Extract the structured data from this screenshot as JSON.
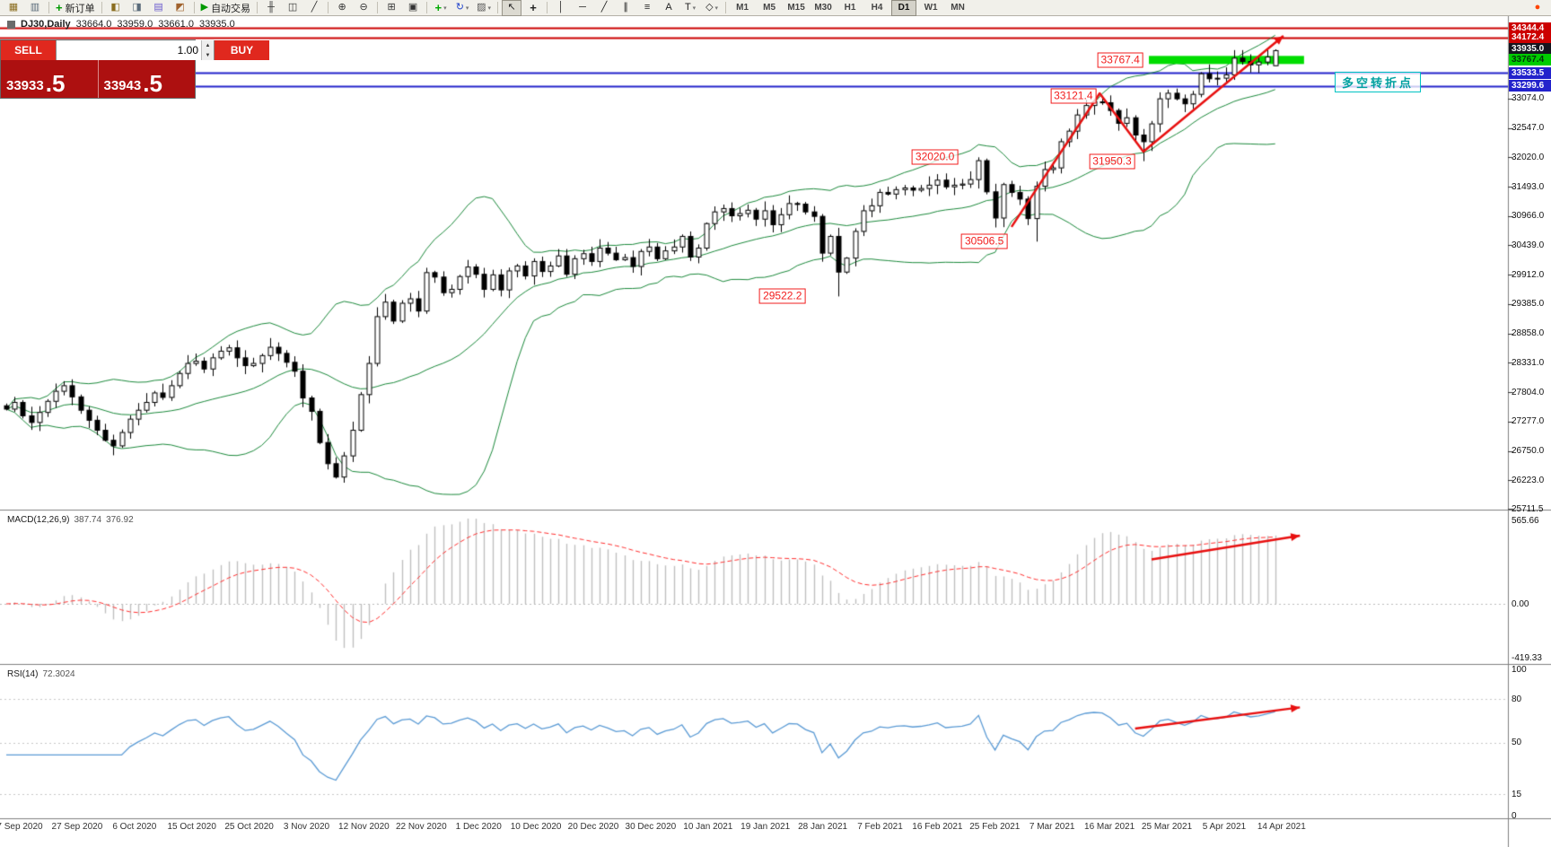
{
  "toolbar": {
    "timeframes": [
      "M1",
      "M5",
      "M15",
      "M30",
      "H1",
      "H4",
      "D1",
      "W1",
      "MN"
    ],
    "selected_timeframe": "D1",
    "groups": [
      {
        "items": [
          {
            "name": "new-chart",
            "glyph": "▦",
            "color": "#8a6d1f"
          },
          {
            "name": "profiles",
            "glyph": "▥",
            "color": "#5a6b7a"
          }
        ]
      },
      {
        "items": [
          {
            "name": "new-order",
            "glyph": "+",
            "color": "#009900",
            "label": "新订单"
          }
        ]
      },
      {
        "items": [
          {
            "name": "market-watch",
            "glyph": "◧",
            "color": "#8a6d1f"
          },
          {
            "name": "data-window",
            "glyph": "◨",
            "color": "#5a6b7a"
          },
          {
            "name": "navigator",
            "glyph": "▤",
            "color": "#6a5acd"
          },
          {
            "name": "metaeditor",
            "glyph": "◩",
            "color": "#a0622d"
          }
        ]
      },
      {
        "items": [
          {
            "name": "auto-trading",
            "glyph": "▶",
            "color": "#009900",
            "label": "自动交易"
          }
        ]
      },
      {
        "items": [
          {
            "name": "bar-chart-type",
            "glyph": "╫",
            "color": "#333333"
          },
          {
            "name": "candlestick-type",
            "glyph": "◫",
            "color": "#333333"
          },
          {
            "name": "line-chart-type",
            "glyph": "╱",
            "color": "#333333"
          }
        ]
      },
      {
        "items": [
          {
            "name": "zoom-in",
            "glyph": "⊕",
            "color": "#333333"
          },
          {
            "name": "zoom-out",
            "glyph": "⊖",
            "color": "#333333"
          }
        ]
      },
      {
        "items": [
          {
            "name": "tile-windows",
            "glyph": "⊞",
            "color": "#333333"
          },
          {
            "name": "arrange-windows",
            "glyph": "▣",
            "color": "#333333"
          }
        ]
      },
      {
        "items": [
          {
            "name": "indicators",
            "glyph": "+",
            "color": "#00aa00",
            "dropdown": true
          },
          {
            "name": "periods",
            "glyph": "↻",
            "color": "#2244cc",
            "dropdown": true
          },
          {
            "name": "templates",
            "glyph": "▨",
            "color": "#555555",
            "dropdown": true
          }
        ]
      },
      {
        "items": [
          {
            "name": "cursor",
            "glyph": "↖",
            "color": "#222222",
            "selected": true
          },
          {
            "name": "crosshair",
            "glyph": "+",
            "color": "#222222"
          }
        ]
      },
      {
        "items": [
          {
            "name": "vertical-line",
            "glyph": "│",
            "color": "#222222"
          },
          {
            "name": "horizontal-line",
            "glyph": "─",
            "color": "#222222"
          },
          {
            "name": "trendline",
            "glyph": "╱",
            "color": "#222222"
          },
          {
            "name": "equidistant-channel",
            "glyph": "∥",
            "color": "#222222"
          },
          {
            "name": "fibonacci",
            "glyph": "≡",
            "color": "#222222"
          },
          {
            "name": "text-tool",
            "glyph": "A",
            "color": "#222222"
          },
          {
            "name": "arrows-tool",
            "glyph": "T",
            "color": "#222222",
            "dropdown": true
          },
          {
            "name": "shapes-tool",
            "glyph": "◇",
            "color": "#222222",
            "dropdown": true
          }
        ]
      },
      {
        "type": "timeframes"
      },
      {
        "type": "spacer"
      },
      {
        "items": [
          {
            "name": "record",
            "glyph": "●",
            "color": "#ff4400"
          }
        ]
      }
    ]
  },
  "chart_header": {
    "symbol_period": "DJ30,Daily",
    "open": "33664.0",
    "high": "33959.0",
    "low": "33661.0",
    "close": "33935.0"
  },
  "trade_panel": {
    "sell_label": "SELL",
    "buy_label": "BUY",
    "volume": "1.00",
    "bid_main": "33933",
    "bid_frac": ".5",
    "ask_main": "33943",
    "ask_frac": ".5"
  },
  "price_axis": {
    "special": [
      {
        "text": "34344.4",
        "at": 34344.4,
        "bg": "#cc0000",
        "fg": "#ffffff"
      },
      {
        "text": "34172.4",
        "at": 34172.4,
        "bg": "#cc0000",
        "fg": "#ffffff"
      },
      {
        "text": "33935.0",
        "at": 33958.0,
        "bg": "#15151f",
        "fg": "#ffffff"
      },
      {
        "text": "33767.4",
        "at": 33767.4,
        "bg": "#00cc00",
        "fg": "#00330a"
      },
      {
        "text": "33533.5",
        "at": 33533.5,
        "bg": "#2323cc",
        "fg": "#ffffff"
      },
      {
        "text": "33299.6",
        "at": 33299.6,
        "bg": "#2323cc",
        "fg": "#ffffff"
      }
    ],
    "ticks": [
      "33074.0",
      "32547.0",
      "32020.0",
      "31493.0",
      "30966.0",
      "30439.0",
      "29912.0",
      "29385.0",
      "28858.0",
      "28331.0",
      "27804.0",
      "27277.0",
      "26750.0",
      "26223.0",
      "25711.5"
    ]
  },
  "macd_panel": {
    "label": "MACD(12,26,9)",
    "value1": "387.74",
    "value2": "376.92",
    "axis": [
      "565.66",
      "0.00",
      "-419.33"
    ]
  },
  "rsi_panel": {
    "label": "RSI(14)",
    "value": "72.3024",
    "axis": [
      "100",
      "80",
      "50",
      "15",
      "0"
    ],
    "levels": [
      80,
      50,
      15
    ]
  },
  "date_axis": [
    "7 Sep 2020",
    "27 Sep 2020",
    "6 Oct 2020",
    "15 Oct 2020",
    "25 Oct 2020",
    "3 Nov 2020",
    "12 Nov 2020",
    "22 Nov 2020",
    "1 Dec 2020",
    "10 Dec 2020",
    "20 Dec 2020",
    "30 Dec 2020",
    "10 Jan 2021",
    "19 Jan 2021",
    "28 Jan 2021",
    "7 Feb 2021",
    "16 Feb 2021",
    "25 Feb 2021",
    "7 Mar 2021",
    "16 Mar 2021",
    "25 Mar 2021",
    "5 Apr 2021",
    "14 Apr 2021"
  ],
  "annotations": {
    "price_labels": [
      {
        "text": "33767.4",
        "i": 138,
        "price": 33767.4
      },
      {
        "text": "33121.4",
        "i": 132.3,
        "price": 33121.4
      },
      {
        "text": "32020.0",
        "i": 115.5,
        "price": 32020.0
      },
      {
        "text": "31950.3",
        "i": 137,
        "price": 31950.3
      },
      {
        "text": "30506.5",
        "i": 121.5,
        "price": 30506.5
      },
      {
        "text": "29522.2",
        "i": 97,
        "price": 29522.2
      }
    ],
    "pivot_label": {
      "text": "多空转折点"
    },
    "hlines": [
      {
        "price": 34344.4,
        "color": "#cc0000",
        "width": 2
      },
      {
        "price": 34172.4,
        "color": "#cc0000",
        "width": 2
      },
      {
        "price": 33533.5,
        "color": "#2323cc",
        "width": 2
      },
      {
        "price": 33299.6,
        "color": "#2323cc",
        "width": 2
      }
    ],
    "band": {
      "price": 33767.4,
      "i1": 139,
      "i2": 157.5,
      "color": "#00dd00",
      "thickness": 9
    },
    "trend_polyline": {
      "color": "#e81010",
      "width": 2.5,
      "points": [
        [
          122,
          30770
        ],
        [
          132.7,
          33169
        ],
        [
          138,
          32122
        ],
        [
          155,
          34200
        ]
      ]
    },
    "macd_arrow": {
      "i1": 139,
      "v1": 290,
      "i2": 157,
      "v2": 445,
      "color": "#e81010",
      "width": 2.5
    },
    "rsi_arrow": {
      "i1": 137,
      "v1": 59.5,
      "i2": 157,
      "v2": 74,
      "color": "#e81010",
      "width": 2.5
    }
  },
  "chart_data": {
    "type": "candlestick",
    "symbol": "DJ30",
    "period": "Daily",
    "ylim": [
      25711.5,
      34344.4
    ],
    "bollinger": {
      "period": 20,
      "deviation": 2
    },
    "macd": {
      "fast": 12,
      "slow": 26,
      "signal": 9
    },
    "rsi": {
      "period": 14
    },
    "closes": [
      27500,
      27620,
      27380,
      27260,
      27440,
      27640,
      27820,
      27920,
      27720,
      27480,
      27300,
      27120,
      26940,
      26840,
      27080,
      27320,
      27480,
      27620,
      27790,
      27710,
      27920,
      28140,
      28320,
      28360,
      28220,
      28420,
      28540,
      28600,
      28420,
      28280,
      28320,
      28460,
      28610,
      28500,
      28340,
      28180,
      27700,
      27460,
      26900,
      26520,
      26280,
      26660,
      27120,
      27760,
      28320,
      29160,
      29420,
      29080,
      29400,
      29480,
      29260,
      29950,
      29870,
      29590,
      29650,
      29880,
      30050,
      29920,
      29650,
      29910,
      29640,
      29980,
      30070,
      29890,
      30150,
      29970,
      30070,
      30250,
      29920,
      30200,
      30290,
      30150,
      30390,
      30300,
      30180,
      30220,
      30060,
      30330,
      30410,
      30200,
      30340,
      30410,
      30600,
      30230,
      30390,
      30830,
      31040,
      31100,
      30970,
      31010,
      31070,
      30910,
      31060,
      30810,
      30990,
      31190,
      31180,
      31040,
      30960,
      30300,
      30600,
      29960,
      30210,
      30690,
      31060,
      31150,
      31390,
      31360,
      31440,
      31470,
      31430,
      31460,
      31520,
      31610,
      31490,
      31520,
      31540,
      31620,
      31960,
      31400,
      30930,
      31530,
      31390,
      31270,
      30920,
      31500,
      31800,
      31830,
      32300,
      32490,
      32780,
      32950,
      33015,
      33000,
      32860,
      32630,
      32730,
      32420,
      32300,
      32620,
      33070,
      33170,
      33070,
      32980,
      33150,
      33520,
      33430,
      33440,
      33500,
      33800,
      33740,
      33680,
      33730,
      33820,
      33935
    ],
    "ohlc_overrides": {
      "0": {
        "open": 27560
      },
      "101": {
        "low": 29522.2
      },
      "118": {
        "high": 32020.0
      },
      "125": {
        "low": 30506.5
      },
      "133": {
        "high": 33121.4
      },
      "138": {
        "low": 31950.3
      },
      "154": {
        "open": 33664.0,
        "high": 33959.0,
        "low": 33661.0,
        "close": 33935.0
      }
    }
  }
}
